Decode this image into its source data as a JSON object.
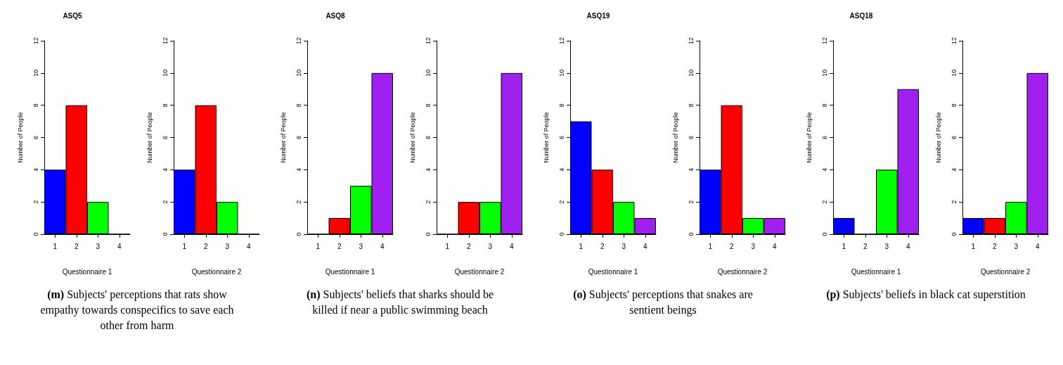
{
  "chart_data": [
    {
      "type": "bar",
      "title": "ASQ5",
      "xlabel": "Questionnaire 1",
      "ylabel": "Number of People",
      "categories": [
        "1",
        "2",
        "3",
        "4"
      ],
      "values": [
        4,
        8,
        2,
        0
      ],
      "colors": [
        "#0000ff",
        "#ff0000",
        "#00ff00",
        "#a020f0"
      ],
      "ylim": [
        0,
        12
      ],
      "yticks": [
        0,
        2,
        4,
        6,
        8,
        10,
        12
      ],
      "grid": false,
      "annotations": [
        "(m) Subjects' perceptions that rats show empathy towards conspecifics to save each other from harm"
      ]
    },
    {
      "type": "bar",
      "xlabel": "Questionnaire 2",
      "ylabel": "Number of People",
      "categories": [
        "1",
        "2",
        "3",
        "4"
      ],
      "values": [
        4,
        8,
        2,
        0
      ],
      "colors": [
        "#0000ff",
        "#ff0000",
        "#00ff00",
        "#a020f0"
      ],
      "ylim": [
        0,
        12
      ],
      "yticks": [
        0,
        2,
        4,
        6,
        8,
        10,
        12
      ],
      "grid": false
    },
    {
      "type": "bar",
      "title": "ASQ8",
      "xlabel": "Questionnaire 1",
      "ylabel": "Number of People",
      "categories": [
        "1",
        "2",
        "3",
        "4"
      ],
      "values": [
        0,
        1,
        3,
        10
      ],
      "colors": [
        "#0000ff",
        "#ff0000",
        "#00ff00",
        "#a020f0"
      ],
      "ylim": [
        0,
        12
      ],
      "yticks": [
        0,
        2,
        4,
        6,
        8,
        10,
        12
      ],
      "grid": false,
      "annotations": [
        "(n) Subjects' beliefs that sharks should be killed if near a public swimming beach"
      ]
    },
    {
      "type": "bar",
      "xlabel": "Questionnaire 2",
      "ylabel": "Number of People",
      "categories": [
        "1",
        "2",
        "3",
        "4"
      ],
      "values": [
        0,
        2,
        2,
        10
      ],
      "colors": [
        "#0000ff",
        "#ff0000",
        "#00ff00",
        "#a020f0"
      ],
      "ylim": [
        0,
        12
      ],
      "yticks": [
        0,
        2,
        4,
        6,
        8,
        10,
        12
      ],
      "grid": false
    },
    {
      "type": "bar",
      "title": "ASQ19",
      "xlabel": "Questionnaire 1",
      "ylabel": "Number of People",
      "categories": [
        "1",
        "2",
        "3",
        "4"
      ],
      "values": [
        7,
        4,
        2,
        1
      ],
      "colors": [
        "#0000ff",
        "#ff0000",
        "#00ff00",
        "#a020f0"
      ],
      "ylim": [
        0,
        12
      ],
      "yticks": [
        0,
        2,
        4,
        6,
        8,
        10,
        12
      ],
      "grid": false,
      "annotations": [
        "(o) Subjects' perceptions that snakes are sentient beings"
      ]
    },
    {
      "type": "bar",
      "xlabel": "Questionnaire 2",
      "ylabel": "Number of People",
      "categories": [
        "1",
        "2",
        "3",
        "4"
      ],
      "values": [
        4,
        8,
        1,
        1
      ],
      "colors": [
        "#0000ff",
        "#ff0000",
        "#00ff00",
        "#a020f0"
      ],
      "ylim": [
        0,
        12
      ],
      "yticks": [
        0,
        2,
        4,
        6,
        8,
        10,
        12
      ],
      "grid": false
    },
    {
      "type": "bar",
      "title": "ASQ18",
      "xlabel": "Questionnaire 1",
      "ylabel": "Number of People",
      "categories": [
        "1",
        "2",
        "3",
        "4"
      ],
      "values": [
        1,
        0,
        4,
        9
      ],
      "colors": [
        "#0000ff",
        "#ff0000",
        "#00ff00",
        "#a020f0"
      ],
      "ylim": [
        0,
        12
      ],
      "yticks": [
        0,
        2,
        4,
        6,
        8,
        10,
        12
      ],
      "grid": false,
      "annotations": [
        "(p) Subjects' beliefs in black cat superstition"
      ]
    },
    {
      "type": "bar",
      "xlabel": "Questionnaire 2",
      "ylabel": "Number of People",
      "categories": [
        "1",
        "2",
        "3",
        "4"
      ],
      "values": [
        1,
        1,
        2,
        10
      ],
      "colors": [
        "#0000ff",
        "#ff0000",
        "#00ff00",
        "#a020f0"
      ],
      "ylim": [
        0,
        12
      ],
      "yticks": [
        0,
        2,
        4,
        6,
        8,
        10,
        12
      ],
      "grid": false
    }
  ]
}
